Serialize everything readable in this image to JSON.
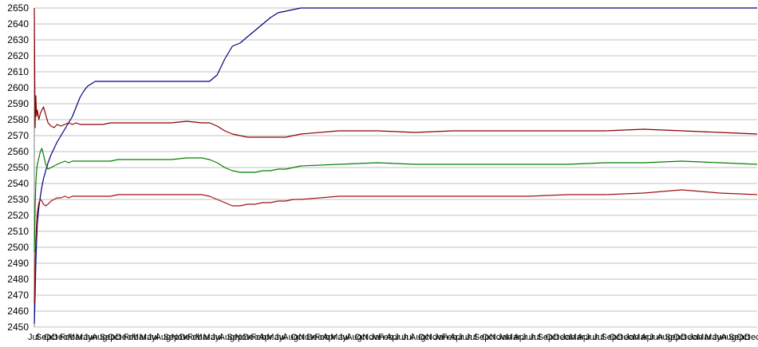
{
  "chart_data": {
    "type": "line",
    "title": "",
    "xlabel": "",
    "ylabel": "",
    "ylim": [
      2450,
      2650
    ],
    "yticks": [
      2450,
      2460,
      2470,
      2480,
      2490,
      2500,
      2510,
      2520,
      2530,
      2540,
      2550,
      2560,
      2570,
      2580,
      2590,
      2600,
      2610,
      2620,
      2630,
      2640,
      2650
    ],
    "grid": true,
    "legend": "none",
    "x_tick_labels_note": "Overlapping month labels along the axis",
    "x_tick_labels": [
      "Jul",
      "Sep",
      "Oct",
      "Dec",
      "Feb",
      "Mar",
      "May",
      "Jun",
      "Aug",
      "Sep",
      "Oct",
      "Dec",
      "Feb",
      "Mar",
      "May",
      "Jul",
      "Aug",
      "Sep",
      "Nov",
      "Dec",
      "Feb",
      "Mar",
      "May",
      "Jul",
      "Aug",
      "Sep",
      "Nov",
      "Dec",
      "Feb",
      "Apr",
      "May",
      "Jul",
      "Aug",
      "Oct",
      "Nov",
      "Dec",
      "Feb",
      "Apr",
      "May",
      "Jul",
      "Aug",
      "Oct",
      "Nov",
      "Jan",
      "Feb",
      "Apr",
      "Jun",
      "Jul",
      "Aug",
      "Oct",
      "Nov",
      "Jan",
      "Feb",
      "Apr",
      "Jun",
      "Jul",
      "Sep",
      "Oct",
      "Nov",
      "Jan",
      "Mar",
      "Apr",
      "Jun",
      "Jul",
      "Sep",
      "Oct",
      "Dec",
      "Jan",
      "Mar",
      "Apr",
      "Jun",
      "Jul",
      "Sep",
      "Oct",
      "Dec",
      "Jan",
      "Mar",
      "Apr",
      "Jun",
      "Aug",
      "Sep",
      "Oct",
      "Dec",
      "Jan",
      "Mar",
      "May",
      "Jun",
      "Aug",
      "Sep",
      "Oct",
      "Dec"
    ],
    "x": [
      0,
      1,
      2,
      3,
      4,
      6,
      8,
      10,
      12,
      15,
      18,
      22,
      26,
      30,
      35,
      40,
      45,
      50,
      55,
      60,
      65,
      70,
      80,
      90,
      100,
      110,
      120,
      140,
      160,
      180,
      200,
      220,
      230,
      240,
      250,
      260,
      270,
      280,
      290,
      300,
      310,
      320,
      330,
      340,
      350,
      400,
      450,
      500,
      550,
      600,
      650,
      700,
      750,
      800,
      850,
      900,
      949
    ],
    "series": [
      {
        "color": "#00007f",
        "values": [
          2452,
          2470,
          2490,
          2505,
          2515,
          2525,
          2532,
          2538,
          2543,
          2548,
          2553,
          2558,
          2562,
          2566,
          2570,
          2574,
          2578,
          2582,
          2588,
          2594,
          2598,
          2601,
          2604,
          2604,
          2604,
          2604,
          2604,
          2604,
          2604,
          2604,
          2604,
          2604,
          2604,
          2608,
          2618,
          2626,
          2628,
          2632,
          2636,
          2640,
          2644,
          2647,
          2648,
          2649,
          2650,
          2650,
          2650,
          2650,
          2650,
          2650,
          2650,
          2650,
          2650,
          2650,
          2650,
          2650,
          2650
        ]
      },
      {
        "color": "#8b0000",
        "values": [
          2650,
          2575,
          2595,
          2582,
          2586,
          2580,
          2584,
          2586,
          2588,
          2583,
          2578,
          2576,
          2575,
          2577,
          2576,
          2577,
          2578,
          2577,
          2578,
          2577,
          2577,
          2577,
          2577,
          2577,
          2578,
          2578,
          2578,
          2578,
          2578,
          2578,
          2579,
          2578,
          2578,
          2576,
          2573,
          2571,
          2570,
          2569,
          2569,
          2569,
          2569,
          2569,
          2569,
          2570,
          2571,
          2573,
          2573,
          2572,
          2573,
          2573,
          2573,
          2573,
          2573,
          2574,
          2573,
          2572,
          2571
        ]
      },
      {
        "color": "#007f00",
        "values": [
          2497,
          2525,
          2540,
          2548,
          2552,
          2556,
          2560,
          2562,
          2558,
          2552,
          2549,
          2550,
          2551,
          2552,
          2553,
          2554,
          2553,
          2554,
          2554,
          2554,
          2554,
          2554,
          2554,
          2554,
          2554,
          2555,
          2555,
          2555,
          2555,
          2555,
          2556,
          2556,
          2555,
          2553,
          2550,
          2548,
          2547,
          2547,
          2547,
          2548,
          2548,
          2549,
          2549,
          2550,
          2551,
          2552,
          2553,
          2552,
          2552,
          2552,
          2552,
          2552,
          2553,
          2553,
          2554,
          2553,
          2552
        ]
      },
      {
        "color": "#a01010",
        "values": [
          2465,
          2490,
          2505,
          2515,
          2522,
          2528,
          2530,
          2529,
          2527,
          2526,
          2527,
          2529,
          2530,
          2531,
          2531,
          2532,
          2531,
          2532,
          2532,
          2532,
          2532,
          2532,
          2532,
          2532,
          2532,
          2533,
          2533,
          2533,
          2533,
          2533,
          2533,
          2533,
          2532,
          2530,
          2528,
          2526,
          2526,
          2527,
          2527,
          2528,
          2528,
          2529,
          2529,
          2530,
          2530,
          2532,
          2532,
          2532,
          2532,
          2532,
          2532,
          2533,
          2533,
          2534,
          2536,
          2534,
          2533
        ]
      }
    ]
  }
}
